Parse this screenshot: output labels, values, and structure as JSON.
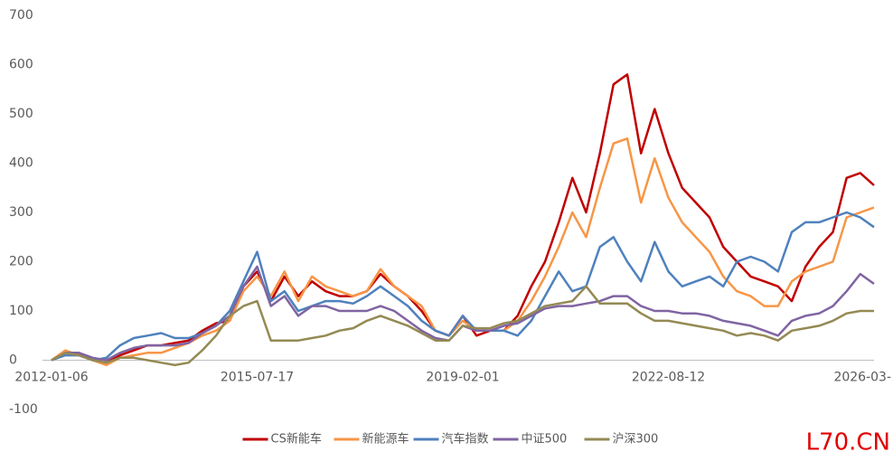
{
  "chart_data": {
    "type": "line",
    "categories": [
      "2012-01-06",
      null,
      null,
      null,
      null,
      null,
      null,
      null,
      null,
      null,
      null,
      null,
      null,
      null,
      null,
      "2015-07-17",
      null,
      null,
      null,
      null,
      null,
      null,
      null,
      null,
      null,
      null,
      null,
      null,
      null,
      null,
      "2019-02-01",
      null,
      null,
      null,
      null,
      null,
      null,
      null,
      null,
      null,
      null,
      null,
      null,
      null,
      null,
      "2022-08-12",
      null,
      null,
      null,
      null,
      null,
      null,
      null,
      null,
      null,
      null,
      null,
      null,
      null,
      null,
      "2026-03-"
    ],
    "ylim": [
      -100,
      700
    ],
    "yticks": [
      -100,
      0,
      100,
      200,
      300,
      400,
      500,
      600,
      700
    ],
    "grid": false,
    "legend": "bottom",
    "series": [
      {
        "name": "CS新能车",
        "color": "#c00000",
        "values": [
          0,
          15,
          12,
          0,
          -5,
          10,
          20,
          30,
          30,
          35,
          40,
          60,
          75,
          80,
          150,
          180,
          120,
          170,
          130,
          160,
          140,
          130,
          130,
          140,
          175,
          150,
          130,
          100,
          60,
          50,
          90,
          50,
          60,
          60,
          90,
          150,
          200,
          280,
          370,
          300,
          420,
          560,
          580,
          420,
          510,
          420,
          350,
          320,
          290,
          230,
          200,
          170,
          160,
          150,
          120,
          190,
          230,
          260,
          370,
          380,
          355
        ]
      },
      {
        "name": "新能源车",
        "color": "#f79646",
        "values": [
          0,
          20,
          10,
          0,
          -10,
          5,
          10,
          15,
          15,
          25,
          35,
          50,
          60,
          80,
          140,
          170,
          130,
          180,
          120,
          170,
          150,
          140,
          130,
          140,
          185,
          150,
          130,
          110,
          60,
          50,
          80,
          60,
          60,
          60,
          80,
          120,
          170,
          230,
          300,
          250,
          350,
          440,
          450,
          320,
          410,
          330,
          280,
          250,
          220,
          170,
          140,
          130,
          110,
          110,
          160,
          180,
          190,
          200,
          290,
          300,
          310
        ]
      },
      {
        "name": "汽车指数",
        "color": "#4f81bd",
        "values": [
          0,
          10,
          10,
          0,
          5,
          30,
          45,
          50,
          55,
          45,
          45,
          55,
          70,
          100,
          160,
          220,
          120,
          140,
          100,
          110,
          120,
          120,
          115,
          130,
          150,
          130,
          110,
          80,
          60,
          50,
          90,
          60,
          60,
          60,
          50,
          80,
          130,
          180,
          140,
          150,
          230,
          250,
          200,
          160,
          240,
          180,
          150,
          160,
          170,
          150,
          200,
          210,
          200,
          180,
          260,
          280,
          280,
          290,
          300,
          290,
          270
        ]
      },
      {
        "name": "中证500",
        "color": "#8064a2",
        "values": [
          0,
          15,
          15,
          5,
          0,
          15,
          25,
          30,
          30,
          30,
          35,
          55,
          70,
          90,
          150,
          190,
          110,
          130,
          90,
          110,
          110,
          100,
          100,
          100,
          110,
          100,
          80,
          60,
          45,
          40,
          70,
          60,
          60,
          70,
          75,
          90,
          105,
          110,
          110,
          115,
          120,
          130,
          130,
          110,
          100,
          100,
          95,
          95,
          90,
          80,
          75,
          70,
          60,
          50,
          80,
          90,
          95,
          110,
          140,
          175,
          155
        ]
      },
      {
        "name": "沪深300",
        "color": "#948a54",
        "values": [
          0,
          15,
          10,
          0,
          -5,
          5,
          5,
          0,
          -5,
          -10,
          -5,
          20,
          50,
          90,
          110,
          120,
          40,
          40,
          40,
          45,
          50,
          60,
          65,
          80,
          90,
          80,
          70,
          55,
          40,
          40,
          70,
          65,
          65,
          75,
          80,
          95,
          110,
          115,
          120,
          150,
          115,
          115,
          115,
          95,
          80,
          80,
          75,
          70,
          65,
          60,
          50,
          55,
          50,
          40,
          60,
          65,
          70,
          80,
          95,
          100,
          100
        ]
      }
    ]
  },
  "watermark": "L70.CN"
}
